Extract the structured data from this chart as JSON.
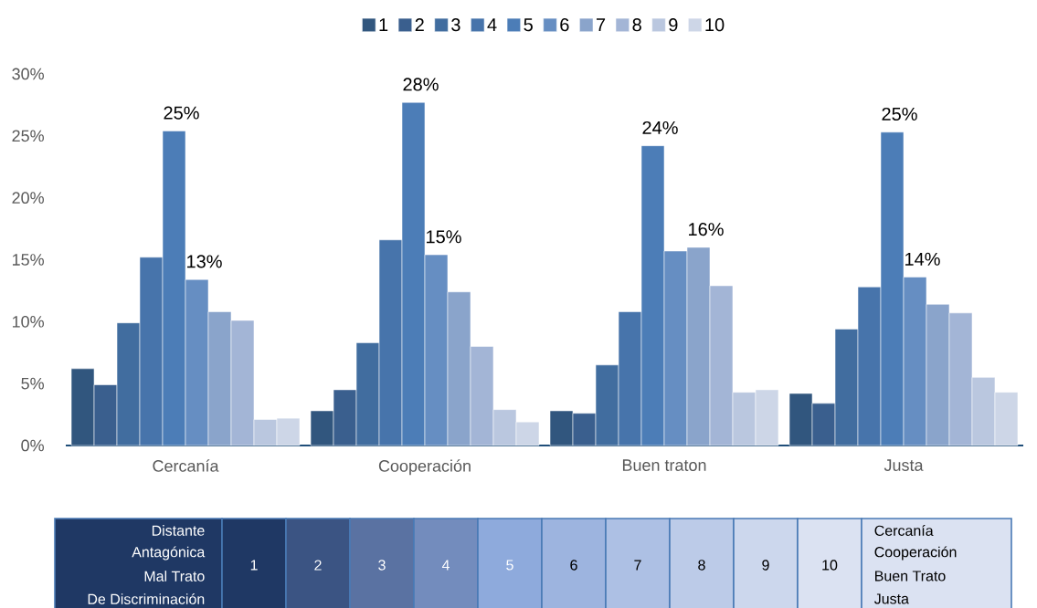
{
  "chart_data": {
    "type": "bar",
    "categories": [
      "Cercanía",
      "Cooperación",
      "Buen traton",
      "Justa"
    ],
    "series": [
      {
        "name": "1",
        "color": "#31567e",
        "values": [
          6.2,
          2.8,
          2.8,
          4.2
        ]
      },
      {
        "name": "2",
        "color": "#3a5f8e",
        "values": [
          4.9,
          4.5,
          2.6,
          3.4
        ]
      },
      {
        "name": "3",
        "color": "#416d9f",
        "values": [
          9.9,
          8.3,
          6.5,
          9.4
        ]
      },
      {
        "name": "4",
        "color": "#4774ab",
        "values": [
          15.2,
          16.6,
          10.8,
          12.8
        ]
      },
      {
        "name": "5",
        "color": "#4c7db7",
        "values": [
          25.4,
          27.7,
          24.2,
          25.3
        ],
        "value_labels": [
          "25%",
          "28%",
          "24%",
          "25%"
        ]
      },
      {
        "name": "6",
        "color": "#668ec2",
        "values": [
          13.4,
          15.4,
          15.7,
          13.6
        ],
        "value_labels": [
          "13%",
          "15%",
          null,
          "14%"
        ]
      },
      {
        "name": "7",
        "color": "#8aa4cb",
        "values": [
          10.8,
          12.4,
          16.0,
          11.4
        ],
        "value_labels": [
          null,
          null,
          "16%",
          null
        ]
      },
      {
        "name": "8",
        "color": "#a3b5d6",
        "values": [
          10.1,
          8.0,
          12.9,
          10.7
        ]
      },
      {
        "name": "9",
        "color": "#bac7df",
        "values": [
          2.1,
          2.9,
          4.3,
          5.5
        ]
      },
      {
        "name": "10",
        "color": "#cdd6e7",
        "values": [
          2.2,
          1.9,
          4.5,
          4.3
        ]
      }
    ],
    "ylim": [
      0,
      30
    ],
    "yticks": [
      {
        "value": 0,
        "label": "0%"
      },
      {
        "value": 5,
        "label": "5%"
      },
      {
        "value": 10,
        "label": "10%"
      },
      {
        "value": 15,
        "label": "15%"
      },
      {
        "value": 20,
        "label": "20%"
      },
      {
        "value": 25,
        "label": "25%"
      },
      {
        "value": 30,
        "label": "30%"
      }
    ],
    "legend": "top",
    "annotations": [
      "Distante",
      "Antagónica",
      "Mal Trato",
      "De Discriminación",
      "Cercanía",
      "Cooperación",
      "Buen Trato",
      "Justa"
    ]
  }
}
